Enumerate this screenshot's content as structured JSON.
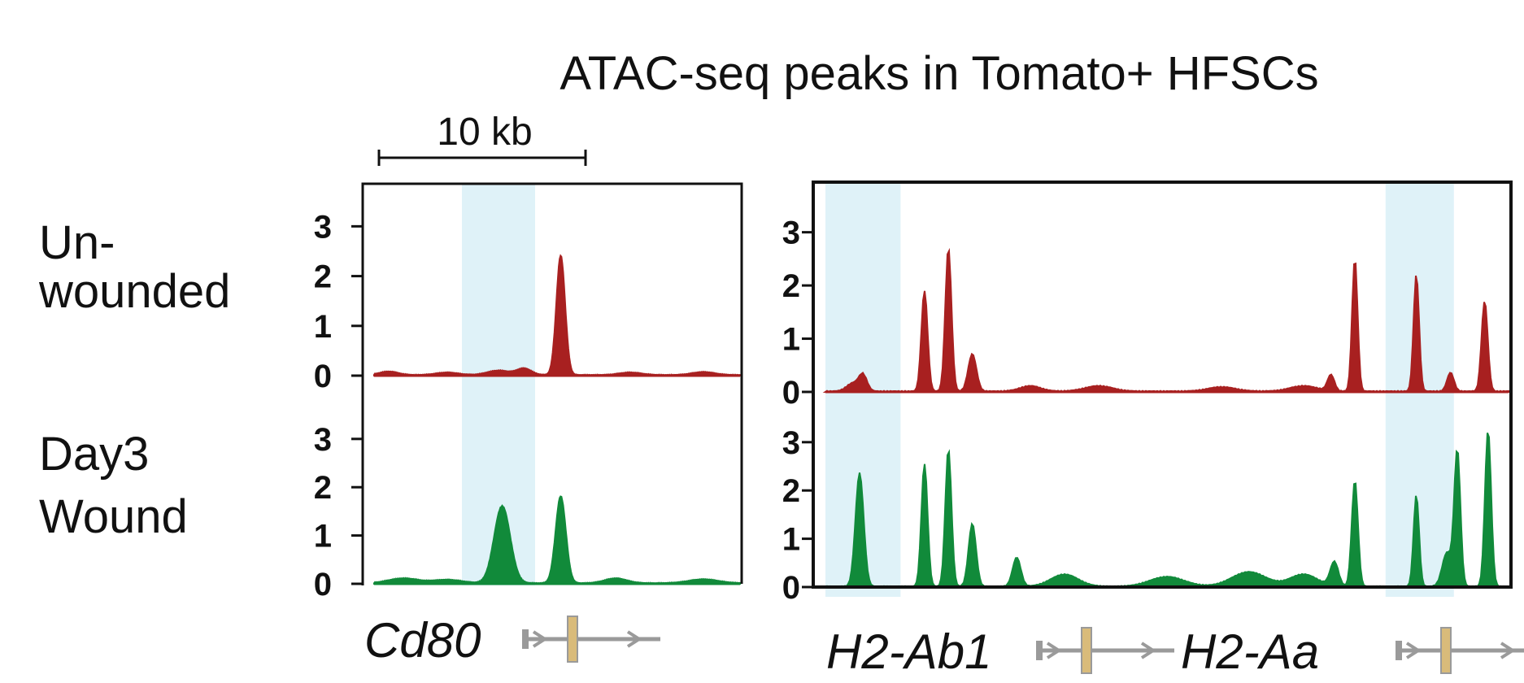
{
  "chart_data": {
    "type": "area",
    "title": "ATAC-seq peaks in Tomato+ HFSCs",
    "scale_bar_label": "10 kb",
    "row_labels": [
      {
        "key": "unwounded",
        "lines": [
          "Un-",
          "wounded"
        ]
      },
      {
        "key": "day3",
        "lines": [
          "Day3",
          "Wound"
        ]
      }
    ],
    "y_ticks": [
      "0",
      "1",
      "2",
      "3"
    ],
    "ylim": [
      0,
      3.3
    ],
    "colors": {
      "unwounded": "#a82020",
      "day3": "#118a3a",
      "highlight": "#dff2f8",
      "gene_model": "#9a9a9a",
      "exon": "#d9bb7a",
      "frame": "#111111"
    },
    "panels": [
      {
        "key": "cd80",
        "genes": [
          {
            "name": "Cd80"
          }
        ],
        "x_range": [
          0,
          100
        ],
        "highlights": [
          [
            24,
            44
          ]
        ],
        "series": [
          {
            "name": "Un-wounded",
            "row": "unwounded",
            "peaks": [
              [
                4,
                0.07,
                2.5
              ],
              [
                20,
                0.05,
                3
              ],
              [
                34,
                0.09,
                3
              ],
              [
                41,
                0.13,
                2
              ],
              [
                51,
                2.4,
                1.2
              ],
              [
                70,
                0.05,
                3
              ],
              [
                90,
                0.06,
                3
              ]
            ]
          },
          {
            "name": "Day3 Wound",
            "row": "day3",
            "peaks": [
              [
                8,
                0.1,
                4
              ],
              [
                20,
                0.07,
                4
              ],
              [
                35,
                1.6,
                2.2
              ],
              [
                51,
                1.8,
                1.4
              ],
              [
                66,
                0.1,
                3
              ],
              [
                90,
                0.08,
                4
              ]
            ]
          }
        ]
      },
      {
        "key": "h2",
        "genes": [
          {
            "name": "H2-Ab1"
          },
          {
            "name": "H2-Aa"
          }
        ],
        "x_range": [
          0,
          100
        ],
        "highlights": [
          [
            0,
            11
          ],
          [
            82,
            92
          ]
        ],
        "series": [
          {
            "name": "Un-wounded",
            "row": "unwounded",
            "peaks": [
              [
                4,
                0.15,
                0.9
              ],
              [
                5.5,
                0.3,
                0.6
              ],
              [
                14.5,
                1.9,
                0.45
              ],
              [
                18,
                2.7,
                0.45
              ],
              [
                21.5,
                0.7,
                0.6
              ],
              [
                30,
                0.1,
                1.5
              ],
              [
                40,
                0.1,
                2
              ],
              [
                58,
                0.08,
                2
              ],
              [
                70,
                0.1,
                2
              ],
              [
                74,
                0.3,
                0.5
              ],
              [
                77.5,
                2.5,
                0.4
              ],
              [
                86.5,
                2.2,
                0.4
              ],
              [
                91.5,
                0.35,
                0.5
              ],
              [
                96.5,
                1.7,
                0.45
              ]
            ]
          },
          {
            "name": "Day3 Wound",
            "row": "day3",
            "peaks": [
              [
                5,
                2.35,
                0.6
              ],
              [
                14.5,
                2.55,
                0.45
              ],
              [
                18,
                2.85,
                0.45
              ],
              [
                21.5,
                1.3,
                0.55
              ],
              [
                28,
                0.6,
                0.6
              ],
              [
                35,
                0.25,
                2
              ],
              [
                50,
                0.2,
                2.5
              ],
              [
                62,
                0.3,
                2.5
              ],
              [
                70,
                0.25,
                2
              ],
              [
                74.5,
                0.5,
                0.6
              ],
              [
                77.5,
                2.2,
                0.45
              ],
              [
                86.5,
                1.9,
                0.4
              ],
              [
                91,
                0.7,
                0.7
              ],
              [
                92.5,
                2.8,
                0.45
              ],
              [
                97,
                3.25,
                0.45
              ]
            ]
          }
        ]
      }
    ]
  }
}
